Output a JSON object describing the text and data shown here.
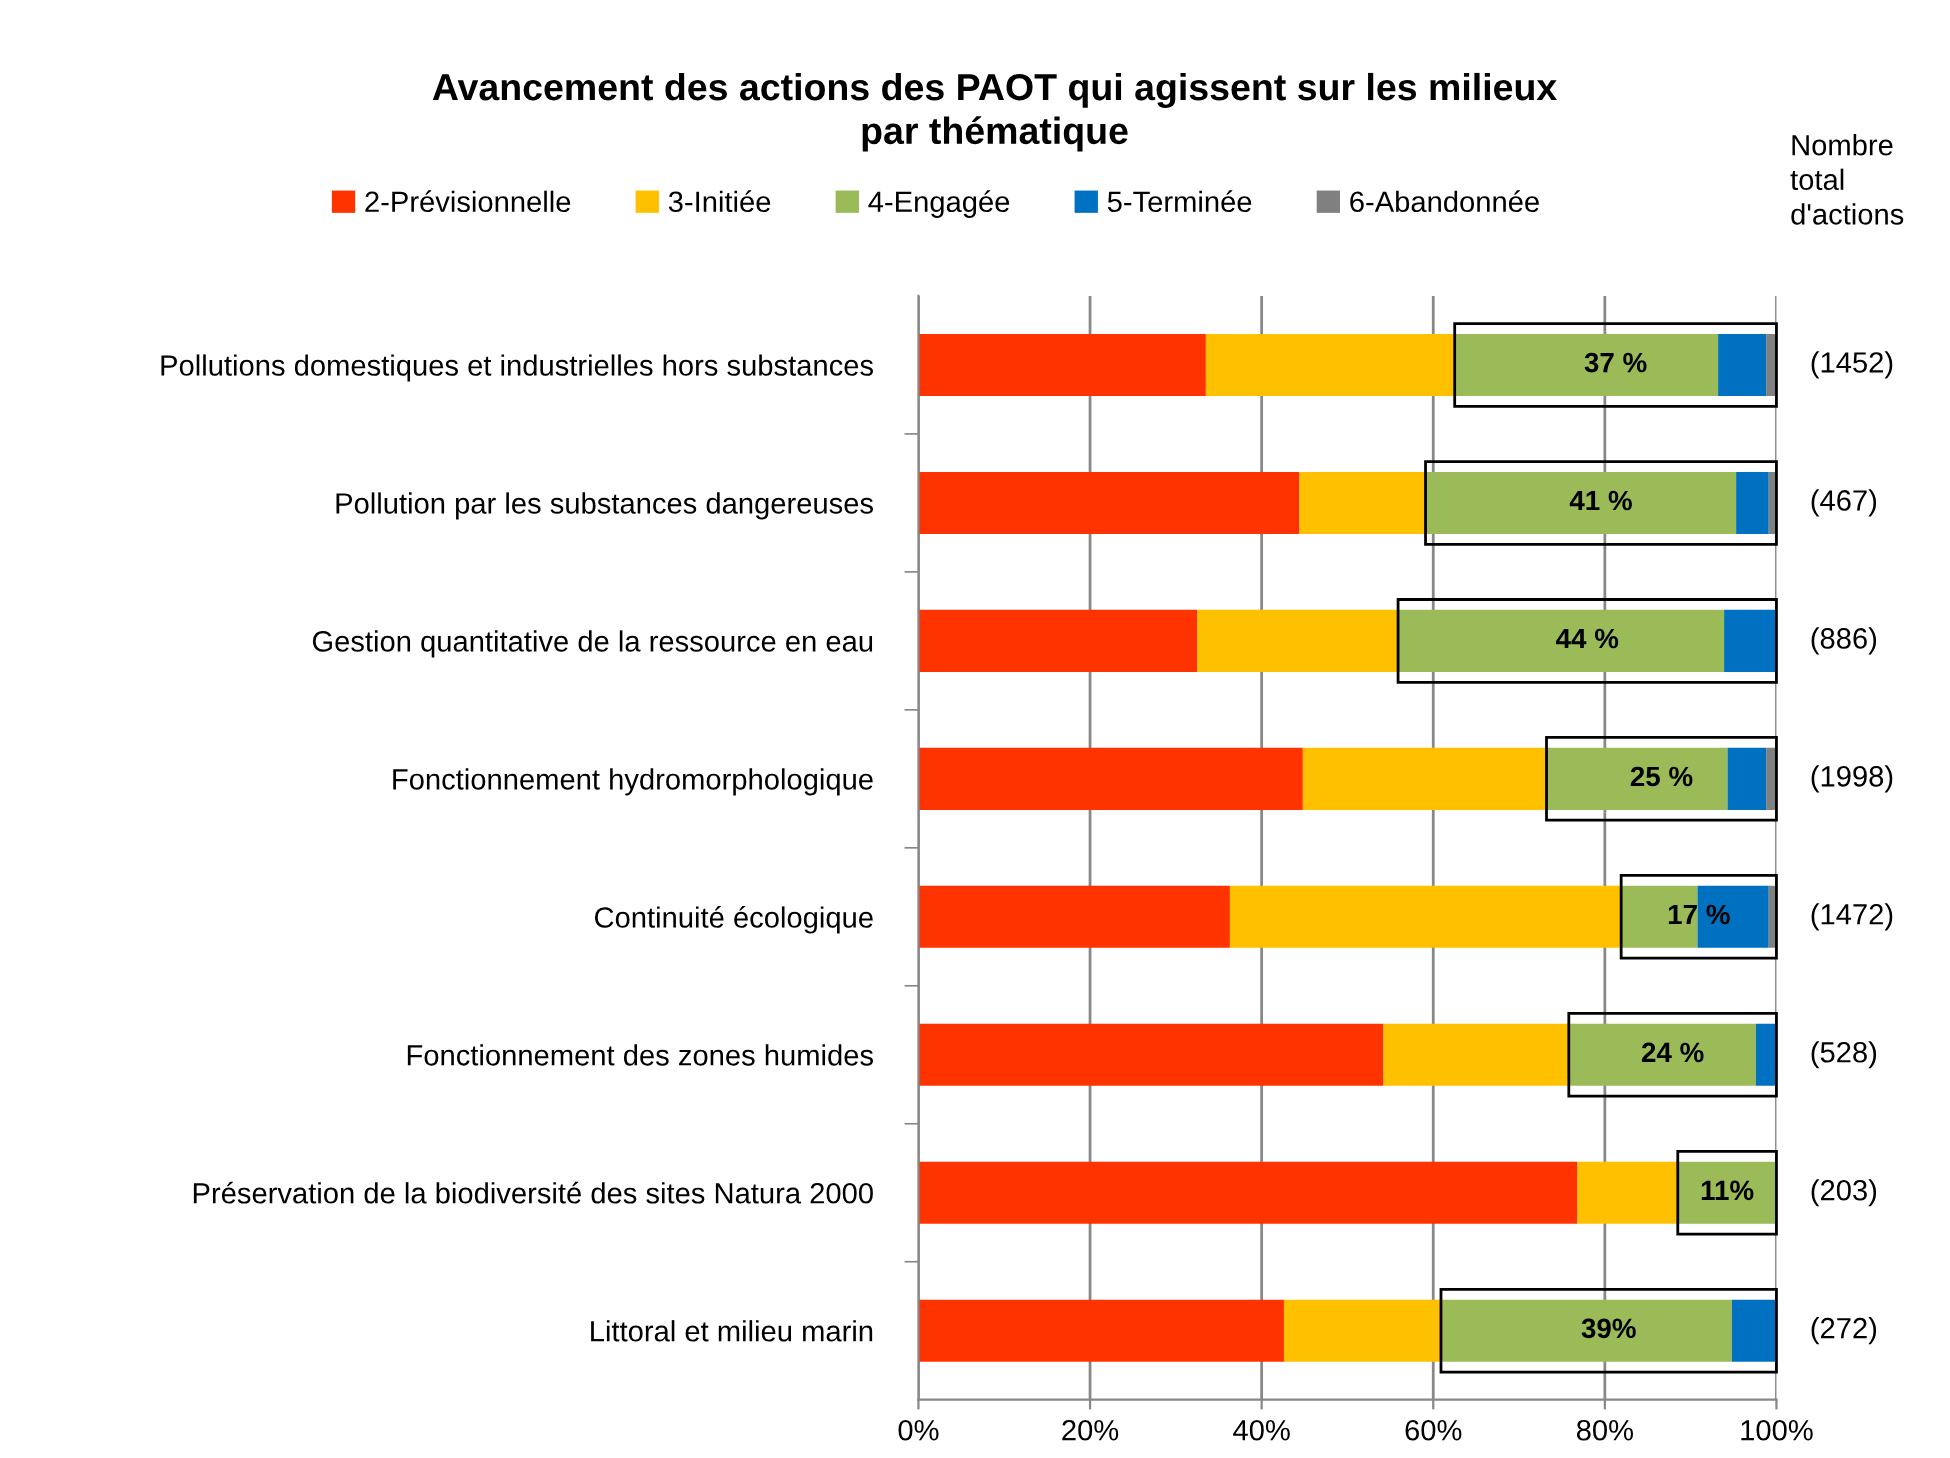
{
  "chart_data": {
    "type": "bar",
    "orientation": "horizontal",
    "stacked": true,
    "title": "Avancement des actions des PAOT qui agissent sur les milieux\npar thématique",
    "categories": [
      "Pollutions domestiques et industrielles hors substances",
      "Pollution par les substances dangereuses",
      "Gestion quantitative de la ressource en eau",
      "Fonctionnement hydromorphologique",
      "Continuité écologique",
      "Fonctionnement des zones humides",
      "Préservation de la biodiversité des sites Natura 2000",
      "Littoral et milieu marin"
    ],
    "series": [
      {
        "name": "2-Prévisionnelle",
        "color": "#ff3300",
        "values": [
          33.5,
          44.4,
          32.5,
          44.8,
          36.3,
          54.2,
          76.8,
          42.6
        ]
      },
      {
        "name": "3-Initiée",
        "color": "#ffc000",
        "values": [
          29.0,
          14.7,
          23.4,
          28.4,
          45.6,
          21.6,
          11.7,
          18.3
        ]
      },
      {
        "name": "4-Engagée",
        "color": "#9bbb59",
        "values": [
          30.7,
          36.2,
          38.0,
          21.1,
          8.9,
          21.8,
          11.5,
          33.9
        ]
      },
      {
        "name": "5-Terminée",
        "color": "#0070c0",
        "values": [
          5.6,
          3.8,
          6.1,
          4.5,
          8.3,
          2.4,
          0,
          5.2
        ]
      },
      {
        "name": "6-Abandonnée",
        "color": "#808080",
        "values": [
          1.2,
          0.9,
          0,
          1.2,
          0.9,
          0,
          0,
          0
        ]
      }
    ],
    "xlim": [
      0,
      100
    ],
    "xticks": [
      {
        "value": 0,
        "label": "0%"
      },
      {
        "value": 20,
        "label": "20%"
      },
      {
        "value": 40,
        "label": "40%"
      },
      {
        "value": 60,
        "label": "60%"
      },
      {
        "value": 80,
        "label": "80%"
      },
      {
        "value": 100,
        "label": "100%"
      }
    ],
    "grid": "x",
    "legend": "top",
    "annotations": [
      "37 %",
      "41 %",
      "44 %",
      "25 %",
      "17 %",
      "24 %",
      "11%",
      "39%",
      "Nombre\ntotal\nd'actions",
      "(1452)",
      "(467)",
      "(886)",
      "(1998)",
      "(1472)",
      "(528)",
      "(203)",
      "(272)"
    ]
  }
}
